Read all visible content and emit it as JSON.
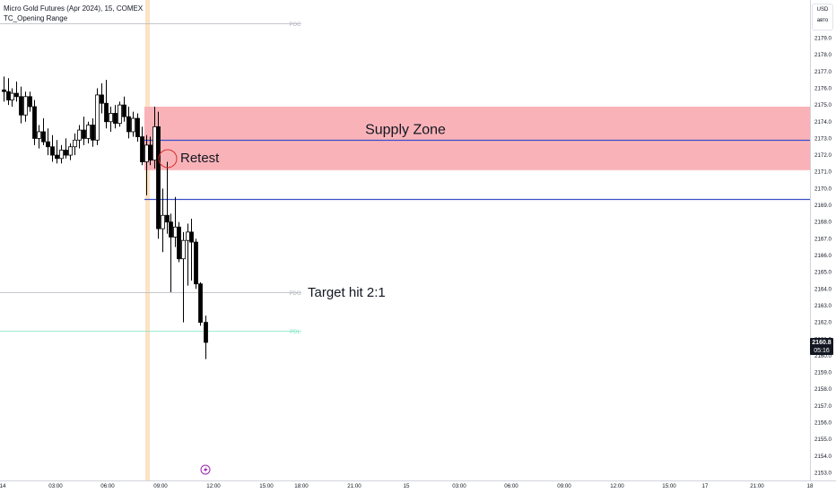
{
  "header": {
    "symbol_line": "Micro Gold Futures (Apr 2024), 15, COMEX",
    "indicator_line": "TC_Opening Range"
  },
  "price_scale": {
    "currency": "USD",
    "mode": "авто",
    "last_price": "2160.8",
    "countdown": "05:16"
  },
  "colors": {
    "bull": "#ffffff",
    "bear": "#000000",
    "candle_outline": "#000000",
    "supply_zone": "#f9b3b8",
    "level_line": "#3a50c8",
    "session_highlight": "#fde3c4",
    "pdl_line": "#7fe3c4",
    "pdo_line": "#b2b5be"
  },
  "chart_data": {
    "type": "candlestick",
    "title": "Micro Gold Futures (Apr 2024), 15, COMEX",
    "ylim": [
      2152.5,
      2180.5
    ],
    "xlim": [
      0,
      932
    ],
    "y_ticks": [
      "2153.0",
      "2154.0",
      "2155.0",
      "2156.0",
      "2157.0",
      "2158.0",
      "2159.0",
      "2160.0",
      "2161.0",
      "2162.0",
      "2163.0",
      "2164.0",
      "2165.0",
      "2166.0",
      "2167.0",
      "2168.0",
      "2169.0",
      "2170.0",
      "2171.0",
      "2172.0",
      "2173.0",
      "2174.0",
      "2175.0",
      "2176.0",
      "2177.0",
      "2178.0",
      "2179.0"
    ],
    "x_ticks": [
      {
        "label": "14",
        "pos": 3
      },
      {
        "label": "03:00",
        "pos": 62
      },
      {
        "label": "06:00",
        "pos": 120
      },
      {
        "label": "09:00",
        "pos": 179
      },
      {
        "label": "12:00",
        "pos": 238
      },
      {
        "label": "15:00",
        "pos": 297
      },
      {
        "label": "18:00",
        "pos": 336
      },
      {
        "label": "21:00",
        "pos": 395
      },
      {
        "label": "15",
        "pos": 453
      },
      {
        "label": "03:00",
        "pos": 512
      },
      {
        "label": "06:00",
        "pos": 570
      },
      {
        "label": "09:00",
        "pos": 629
      },
      {
        "label": "12:00",
        "pos": 688
      },
      {
        "label": "15:00",
        "pos": 746
      },
      {
        "label": "17",
        "pos": 786
      },
      {
        "label": "21:00",
        "pos": 844
      },
      {
        "label": "18",
        "pos": 903
      }
    ],
    "candles": [
      {
        "x": 4,
        "o": 2175.9,
        "h": 2176.7,
        "l": 2175.2,
        "c": 2175.8
      },
      {
        "x": 9,
        "o": 2175.8,
        "h": 2176.6,
        "l": 2175.0,
        "c": 2175.3
      },
      {
        "x": 13,
        "o": 2175.3,
        "h": 2176.0,
        "l": 2174.9,
        "c": 2175.7
      },
      {
        "x": 18,
        "o": 2175.7,
        "h": 2176.4,
        "l": 2175.2,
        "c": 2175.5
      },
      {
        "x": 23,
        "o": 2175.5,
        "h": 2176.1,
        "l": 2173.9,
        "c": 2174.4
      },
      {
        "x": 28,
        "o": 2174.4,
        "h": 2175.8,
        "l": 2174.0,
        "c": 2175.5
      },
      {
        "x": 33,
        "o": 2175.5,
        "h": 2175.8,
        "l": 2174.6,
        "c": 2174.9
      },
      {
        "x": 38,
        "o": 2174.9,
        "h": 2175.3,
        "l": 2172.6,
        "c": 2173.0
      },
      {
        "x": 43,
        "o": 2173.0,
        "h": 2173.8,
        "l": 2172.4,
        "c": 2173.4
      },
      {
        "x": 48,
        "o": 2173.4,
        "h": 2174.2,
        "l": 2172.6,
        "c": 2172.8
      },
      {
        "x": 53,
        "o": 2172.8,
        "h": 2173.6,
        "l": 2172.0,
        "c": 2172.5
      },
      {
        "x": 58,
        "o": 2172.5,
        "h": 2173.2,
        "l": 2171.6,
        "c": 2172.0
      },
      {
        "x": 63,
        "o": 2172.0,
        "h": 2172.9,
        "l": 2171.5,
        "c": 2171.8
      },
      {
        "x": 68,
        "o": 2171.8,
        "h": 2172.6,
        "l": 2171.5,
        "c": 2172.3
      },
      {
        "x": 73,
        "o": 2172.3,
        "h": 2173.0,
        "l": 2171.8,
        "c": 2172.0
      },
      {
        "x": 78,
        "o": 2172.0,
        "h": 2172.7,
        "l": 2171.7,
        "c": 2172.5
      },
      {
        "x": 83,
        "o": 2172.5,
        "h": 2173.3,
        "l": 2172.0,
        "c": 2172.9
      },
      {
        "x": 88,
        "o": 2172.9,
        "h": 2173.8,
        "l": 2172.4,
        "c": 2173.5
      },
      {
        "x": 93,
        "o": 2173.5,
        "h": 2174.3,
        "l": 2172.6,
        "c": 2173.0
      },
      {
        "x": 98,
        "o": 2173.0,
        "h": 2174.0,
        "l": 2172.7,
        "c": 2173.8
      },
      {
        "x": 103,
        "o": 2173.8,
        "h": 2174.2,
        "l": 2172.5,
        "c": 2172.9
      },
      {
        "x": 108,
        "o": 2172.9,
        "h": 2176.0,
        "l": 2172.6,
        "c": 2175.6
      },
      {
        "x": 113,
        "o": 2175.6,
        "h": 2176.3,
        "l": 2174.5,
        "c": 2175.1
      },
      {
        "x": 118,
        "o": 2175.1,
        "h": 2176.5,
        "l": 2173.6,
        "c": 2174.0
      },
      {
        "x": 123,
        "o": 2174.0,
        "h": 2174.9,
        "l": 2173.4,
        "c": 2174.5
      },
      {
        "x": 128,
        "o": 2174.5,
        "h": 2175.0,
        "l": 2173.6,
        "c": 2173.9
      },
      {
        "x": 133,
        "o": 2173.9,
        "h": 2175.2,
        "l": 2173.7,
        "c": 2175.0
      },
      {
        "x": 138,
        "o": 2175.0,
        "h": 2175.5,
        "l": 2174.0,
        "c": 2174.3
      },
      {
        "x": 143,
        "o": 2174.3,
        "h": 2174.9,
        "l": 2173.0,
        "c": 2173.4
      },
      {
        "x": 148,
        "o": 2173.4,
        "h": 2174.6,
        "l": 2173.1,
        "c": 2174.2
      },
      {
        "x": 153,
        "o": 2174.2,
        "h": 2174.5,
        "l": 2172.8,
        "c": 2173.1
      },
      {
        "x": 158,
        "o": 2173.1,
        "h": 2173.7,
        "l": 2171.4,
        "c": 2171.6
      },
      {
        "x": 163,
        "o": 2171.6,
        "h": 2173.2,
        "l": 2169.6,
        "c": 2172.6
      },
      {
        "x": 167,
        "o": 2172.6,
        "h": 2173.1,
        "l": 2171.4,
        "c": 2171.7
      },
      {
        "x": 172,
        "o": 2171.7,
        "h": 2174.9,
        "l": 2171.2,
        "c": 2173.7
      },
      {
        "x": 176,
        "o": 2173.7,
        "h": 2174.6,
        "l": 2167.0,
        "c": 2167.6
      },
      {
        "x": 181,
        "o": 2167.6,
        "h": 2170.0,
        "l": 2166.2,
        "c": 2168.4
      },
      {
        "x": 186,
        "o": 2168.4,
        "h": 2171.6,
        "l": 2167.3,
        "c": 2168.0
      },
      {
        "x": 190,
        "o": 2168.0,
        "h": 2168.5,
        "l": 2163.8,
        "c": 2167.1
      },
      {
        "x": 195,
        "o": 2167.1,
        "h": 2169.5,
        "l": 2166.5,
        "c": 2167.7
      },
      {
        "x": 199,
        "o": 2167.7,
        "h": 2168.0,
        "l": 2165.6,
        "c": 2165.8
      },
      {
        "x": 204,
        "o": 2165.8,
        "h": 2167.4,
        "l": 2162.0,
        "c": 2166.9
      },
      {
        "x": 209,
        "o": 2166.9,
        "h": 2167.9,
        "l": 2164.2,
        "c": 2167.4
      },
      {
        "x": 213,
        "o": 2167.4,
        "h": 2168.2,
        "l": 2164.5,
        "c": 2166.8
      },
      {
        "x": 218,
        "o": 2166.8,
        "h": 2167.0,
        "l": 2164.0,
        "c": 2164.3
      },
      {
        "x": 223,
        "o": 2164.3,
        "h": 2164.4,
        "l": 2161.8,
        "c": 2162.0
      },
      {
        "x": 229,
        "o": 2162.0,
        "h": 2162.4,
        "l": 2159.8,
        "c": 2160.8
      }
    ],
    "zones": [
      {
        "label": "Supply Zone",
        "y_top": 2174.9,
        "y_bottom": 2171.1,
        "x_start": 161,
        "x_end": 903
      }
    ],
    "levels": [
      {
        "name": "upper-level",
        "y": 2172.9,
        "x_start": 161,
        "x_end": 903
      },
      {
        "name": "lower-level",
        "y": 2169.4,
        "x_start": 161,
        "x_end": 903
      }
    ],
    "reference_lines": [
      {
        "label": "POC",
        "y": 2179.9,
        "color": "#b2b5be"
      },
      {
        "label": "PDO",
        "y": 2163.8,
        "color": "#b2b5be"
      },
      {
        "label": "PDL",
        "y": 2161.5,
        "color": "#7fe3c4"
      }
    ],
    "session_highlight_x": 165,
    "annotations": [
      {
        "text": "Retest",
        "y": 2171.9
      },
      {
        "text": "Target hit 2:1",
        "y": 2163.8
      }
    ]
  }
}
